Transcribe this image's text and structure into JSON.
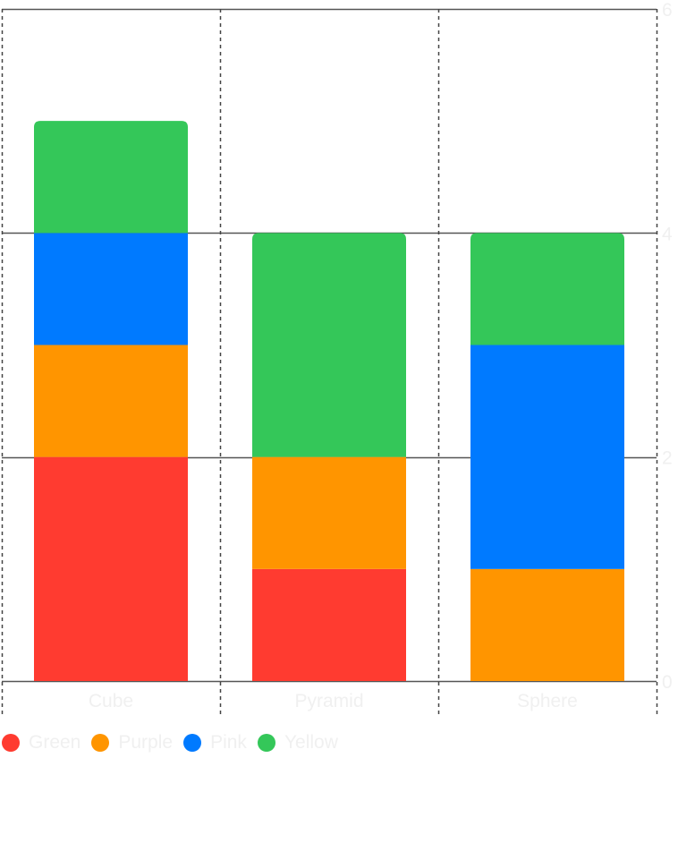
{
  "chart_data": {
    "type": "bar",
    "stacked": true,
    "categories": [
      "Cube",
      "Pyramid",
      "Sphere"
    ],
    "series": [
      {
        "name": "Green",
        "color": "#FF3B30",
        "values": [
          2,
          1,
          0
        ]
      },
      {
        "name": "Purple",
        "color": "#FF9500",
        "values": [
          1,
          1,
          1
        ]
      },
      {
        "name": "Pink",
        "color": "#007AFF",
        "values": [
          1,
          0,
          2
        ]
      },
      {
        "name": "Yellow",
        "color": "#34C759",
        "values": [
          1,
          2,
          1
        ]
      }
    ],
    "ylim": [
      0,
      6
    ],
    "yticks": [
      "0",
      "2",
      "4",
      "6"
    ],
    "y_axis_position": "right",
    "grid": true,
    "legend_position": "bottom-left"
  }
}
